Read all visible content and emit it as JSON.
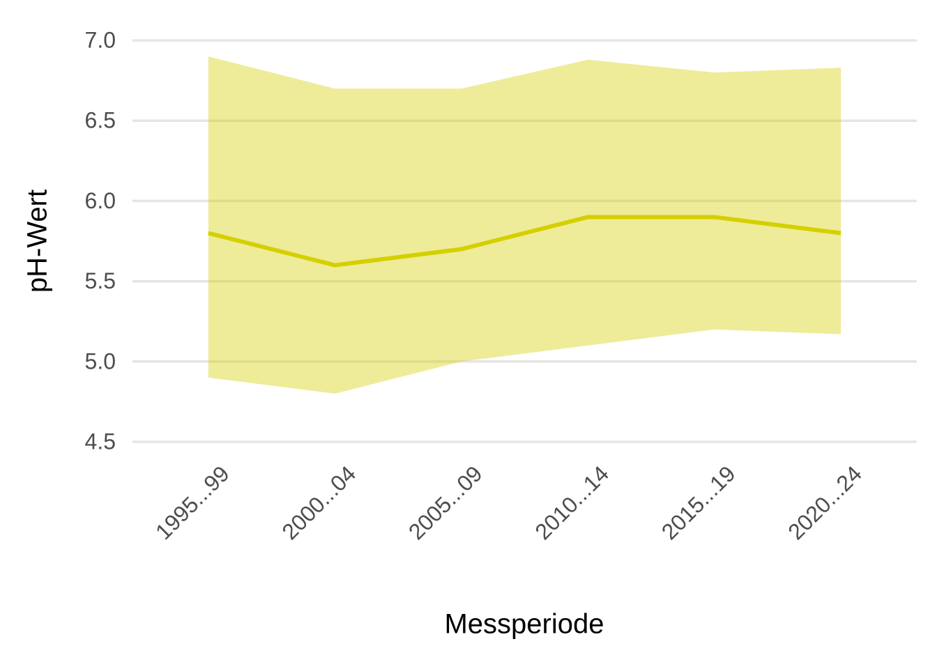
{
  "chart_data": {
    "type": "line-band",
    "x_label": "Messperiode",
    "y_label": "pH-Wert",
    "categories": [
      "1995...99",
      "2000...04",
      "2005...09",
      "2010...14",
      "2015...19",
      "2020...24"
    ],
    "values": [
      5.8,
      5.6,
      5.7,
      5.9,
      5.9,
      5.8
    ],
    "upper": [
      6.9,
      6.7,
      6.7,
      6.88,
      6.8,
      6.83
    ],
    "lower": [
      4.9,
      4.8,
      5.0,
      5.1,
      5.2,
      5.17
    ],
    "color": "#d4d000",
    "band_color": "#d4d000",
    "ylim": [
      4.5,
      7.0
    ],
    "yticks": [
      {
        "value": 4.5,
        "label": "4.5"
      },
      {
        "value": 5.0,
        "label": "5.0"
      },
      {
        "value": 5.5,
        "label": "5.5"
      },
      {
        "value": 6.0,
        "label": "6.0"
      },
      {
        "value": 6.5,
        "label": "6.5"
      },
      {
        "value": 7.0,
        "label": "7.0"
      }
    ],
    "grid": true
  }
}
